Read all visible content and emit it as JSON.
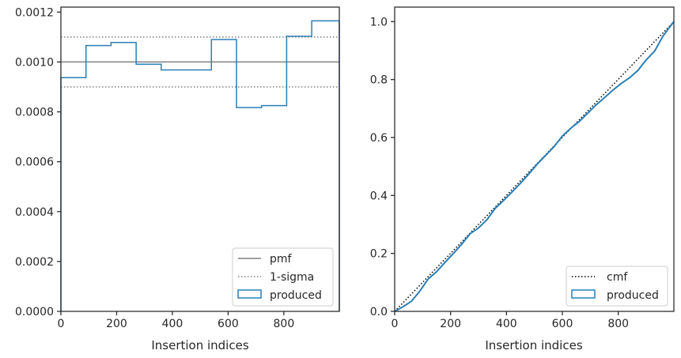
{
  "chart_data": [
    {
      "type": "step",
      "xlabel": "Insertion indices",
      "ylabel": "",
      "xlim": [
        0,
        999
      ],
      "ylim": [
        0,
        0.00122
      ],
      "xticks": [
        0,
        200,
        400,
        600,
        800
      ],
      "xtick_labels": [
        "0",
        "200",
        "400",
        "600",
        "800"
      ],
      "yticks": [
        0,
        0.0002,
        0.0004,
        0.0006,
        0.0008,
        0.001,
        0.0012
      ],
      "ytick_labels": [
        "0.0000",
        "0.0002",
        "0.0004",
        "0.0006",
        "0.0008",
        "0.0010",
        "0.0012"
      ],
      "grid": false,
      "legend_position": "lower-right",
      "reference_lines": [
        {
          "name": "pmf",
          "y": 0.001,
          "style": "solid",
          "color": "#808080"
        },
        {
          "name": "1-sigma",
          "y": 0.0011,
          "style": "dotted",
          "color": "#808080"
        },
        {
          "name": "1-sigma",
          "y": 0.0009,
          "style": "dotted",
          "color": "#808080"
        }
      ],
      "series": [
        {
          "name": "produced",
          "color": "#2a7fb5",
          "bin_edges": [
            0,
            90,
            180,
            270,
            360,
            450,
            540,
            630,
            720,
            810,
            900,
            999
          ],
          "values": [
            0.000937,
            0.001066,
            0.001078,
            0.000991,
            0.000968,
            0.000968,
            0.00109,
            0.000817,
            0.000825,
            0.001103,
            0.001165
          ]
        }
      ],
      "legend": [
        {
          "label": "pmf",
          "kind": "solid-line",
          "color": "#808080"
        },
        {
          "label": "1-sigma",
          "kind": "dotted-line",
          "color": "#808080"
        },
        {
          "label": "produced",
          "kind": "box",
          "color": "#2a7fb5"
        }
      ]
    },
    {
      "type": "line",
      "xlabel": "Insertion indices",
      "ylabel": "",
      "xlim": [
        0,
        999
      ],
      "ylim": [
        0,
        1.05
      ],
      "xticks": [
        0,
        200,
        400,
        600,
        800
      ],
      "xtick_labels": [
        "0",
        "200",
        "400",
        "600",
        "800"
      ],
      "yticks": [
        0,
        0.2,
        0.4,
        0.6,
        0.8,
        1.0
      ],
      "ytick_labels": [
        "0.0",
        "0.2",
        "0.4",
        "0.6",
        "0.8",
        "1.0"
      ],
      "grid": false,
      "legend_position": "lower-right",
      "series": [
        {
          "name": "cmf",
          "style": "dotted",
          "color": "#000000",
          "x": [
            0,
            999
          ],
          "y": [
            0,
            1.0
          ]
        },
        {
          "name": "produced",
          "style": "step",
          "color": "#2a7fb5",
          "x": [
            0,
            30,
            60,
            90,
            120,
            150,
            180,
            210,
            240,
            270,
            300,
            330,
            360,
            390,
            420,
            450,
            480,
            510,
            540,
            570,
            600,
            630,
            660,
            690,
            720,
            750,
            780,
            810,
            840,
            870,
            900,
            930,
            960,
            999
          ],
          "y": [
            0,
            0.016,
            0.035,
            0.07,
            0.112,
            0.137,
            0.169,
            0.2,
            0.232,
            0.268,
            0.288,
            0.316,
            0.356,
            0.383,
            0.412,
            0.442,
            0.474,
            0.508,
            0.538,
            0.568,
            0.605,
            0.632,
            0.655,
            0.683,
            0.712,
            0.737,
            0.763,
            0.786,
            0.806,
            0.831,
            0.868,
            0.898,
            0.95,
            1.0
          ]
        }
      ],
      "legend": [
        {
          "label": "cmf",
          "kind": "dotted-line",
          "color": "#000000"
        },
        {
          "label": "produced",
          "kind": "box",
          "color": "#2a7fb5"
        }
      ]
    }
  ]
}
